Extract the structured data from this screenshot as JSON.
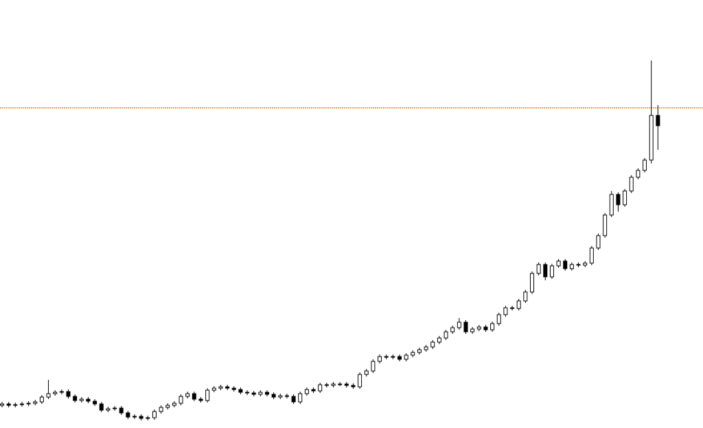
{
  "chart_data": {
    "type": "candlestick",
    "open": [
      33,
      35,
      33,
      34,
      35,
      36,
      38,
      45,
      50,
      52,
      53,
      46,
      40,
      42,
      39,
      35,
      26,
      28,
      29,
      22,
      16,
      17,
      14,
      15,
      24,
      30,
      33,
      36,
      46,
      50,
      42,
      40,
      55,
      58,
      60,
      58,
      56,
      52,
      51,
      49,
      52,
      49,
      45,
      47,
      46,
      38,
      50,
      56,
      54,
      63,
      62,
      64,
      64,
      62,
      60,
      78,
      83,
      97,
      104,
      103,
      104,
      100,
      106,
      110,
      114,
      118,
      125,
      131,
      140,
      146,
      154,
      140,
      144,
      147,
      143,
      152,
      165,
      175,
      174,
      185,
      198,
      225,
      238,
      220,
      236,
      243,
      232,
      238,
      237,
      240,
      262,
      280,
      310,
      340,
      325,
      345,
      365,
      375,
      390,
      455
    ],
    "high": [
      38,
      38,
      37,
      38,
      39,
      41,
      48,
      70,
      55,
      56,
      56,
      49,
      45,
      45,
      42,
      38,
      31,
      32,
      32,
      25,
      20,
      20,
      18,
      27,
      33,
      36,
      39,
      49,
      53,
      53,
      45,
      58,
      61,
      63,
      63,
      61,
      59,
      55,
      54,
      55,
      55,
      52,
      50,
      50,
      49,
      53,
      59,
      59,
      66,
      66,
      67,
      67,
      67,
      65,
      81,
      86,
      100,
      107,
      107,
      107,
      107,
      109,
      113,
      117,
      121,
      128,
      134,
      143,
      149,
      160,
      157,
      147,
      150,
      150,
      155,
      168,
      178,
      178,
      188,
      201,
      228,
      241,
      241,
      239,
      246,
      246,
      241,
      241,
      243,
      265,
      283,
      313,
      345,
      343,
      348,
      368,
      378,
      393,
      535,
      470
    ],
    "low": [
      30,
      30,
      30,
      31,
      32,
      33,
      35,
      42,
      47,
      49,
      43,
      37,
      37,
      36,
      32,
      23,
      23,
      25,
      19,
      13,
      13,
      11,
      11,
      12,
      21,
      27,
      30,
      33,
      43,
      39,
      37,
      37,
      52,
      55,
      55,
      53,
      49,
      48,
      46,
      46,
      46,
      42,
      42,
      43,
      35,
      35,
      47,
      51,
      51,
      59,
      59,
      61,
      59,
      57,
      57,
      75,
      80,
      94,
      100,
      100,
      97,
      97,
      103,
      107,
      111,
      115,
      122,
      128,
      137,
      143,
      137,
      137,
      141,
      140,
      140,
      149,
      162,
      171,
      171,
      182,
      195,
      222,
      215,
      217,
      233,
      229,
      229,
      234,
      234,
      237,
      259,
      277,
      307,
      315,
      322,
      342,
      362,
      372,
      385,
      405
    ],
    "close": [
      35,
      33,
      34,
      35,
      36,
      38,
      45,
      50,
      52,
      53,
      46,
      40,
      42,
      39,
      35,
      26,
      28,
      29,
      22,
      16,
      17,
      14,
      15,
      24,
      30,
      33,
      36,
      46,
      50,
      42,
      40,
      55,
      58,
      60,
      58,
      56,
      52,
      51,
      49,
      52,
      49,
      45,
      47,
      46,
      38,
      50,
      56,
      54,
      63,
      62,
      64,
      64,
      62,
      60,
      78,
      83,
      97,
      104,
      103,
      104,
      100,
      106,
      110,
      114,
      118,
      125,
      131,
      140,
      146,
      154,
      140,
      144,
      147,
      143,
      152,
      165,
      175,
      174,
      185,
      198,
      225,
      238,
      220,
      236,
      243,
      232,
      238,
      237,
      240,
      262,
      280,
      310,
      340,
      325,
      345,
      365,
      375,
      390,
      455,
      440
    ],
    "ylim": [
      0,
      623
    ],
    "price_line": 466,
    "up_color": "#ffffff",
    "down_color": "#000000",
    "price_line_color": "#d9822b"
  }
}
